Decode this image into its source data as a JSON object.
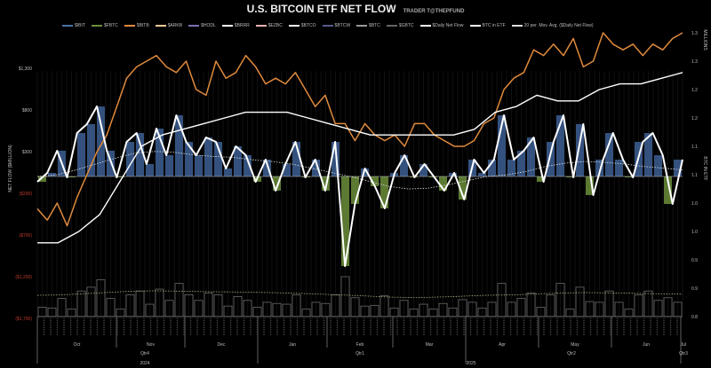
{
  "title": "U.S. BITCOIN ETF NET FLOW",
  "subtitle": "TRADER T@THEPFUND",
  "chart_data": {
    "type": "bar",
    "title": "U.S. BITCOIN ETF NET FLOW",
    "ylabel": "NET FLOW ($MILLION)",
    "y2label": "BTC IN ETF",
    "y2unit": "MILLIONS",
    "ylim": [
      -1700,
      1300
    ],
    "y2lim": [
      0.8,
      1.3
    ],
    "yticks": [
      "$1,300",
      "$800",
      "$300",
      "($200)",
      "($700)",
      "($1,200)",
      "($1,700)"
    ],
    "y2ticks": [
      "1.3",
      "1.3",
      "1.2",
      "1.2",
      "1.1",
      "1.1",
      "1.0",
      "1.0",
      "0.9",
      "0.9",
      "0.8"
    ],
    "legend": [
      {
        "name": "$IBIT",
        "color": "#4a6fa5"
      },
      {
        "name": "$FBTC",
        "color": "#6b8e3a"
      },
      {
        "name": "$BITB",
        "color": "#e08a3c"
      },
      {
        "name": "$ARKB",
        "color": "#f4c99a"
      },
      {
        "name": "$HODL",
        "color": "#7b6fb5"
      },
      {
        "name": "$BRRR",
        "color": "#ffffff"
      },
      {
        "name": "$EZBC",
        "color": "#e7b3b3"
      },
      {
        "name": "$BTCO",
        "color": "#f5f5f5"
      },
      {
        "name": "$BTCW",
        "color": "#5a5a8a"
      },
      {
        "name": "$BTC",
        "color": "#999999"
      },
      {
        "name": "$GBTC",
        "color": "#666666"
      },
      {
        "name": "$Daily Net Flow",
        "color": "#ffffff"
      },
      {
        "name": "BTC in ETF",
        "color": "#ffffff"
      },
      {
        "name": "20 per. Mov. Avg. ($Daily Net Flow)",
        "color": "#dddddd"
      }
    ],
    "months": [
      {
        "label": "Oct"
      },
      {
        "label": "Nov"
      },
      {
        "label": "Dec"
      },
      {
        "label": "Jan"
      },
      {
        "label": "Feb"
      },
      {
        "label": "Mar"
      },
      {
        "label": "Apr"
      },
      {
        "label": "May"
      },
      {
        "label": "Jun"
      },
      {
        "label": "Jul"
      }
    ],
    "quarters": [
      "Qtr4",
      "Qtr1",
      "Qtr2",
      "Qtr3"
    ],
    "years": [
      "2024",
      "2025"
    ],
    "daily_net_flow": [
      -64,
      43,
      309,
      -11,
      521,
      628,
      840,
      309,
      -11,
      415,
      521,
      149,
      574,
      255,
      734,
      415,
      255,
      468,
      415,
      96,
      362,
      255,
      -64,
      202,
      -170,
      149,
      415,
      -11,
      202,
      -170,
      415,
      -1075,
      -330,
      96,
      -117,
      -383,
      43,
      255,
      -11,
      149,
      -11,
      -170,
      43,
      -277,
      202,
      43,
      202,
      734,
      202,
      309,
      468,
      -64,
      415,
      734,
      -11,
      628,
      -223,
      202,
      521,
      202,
      -11,
      415,
      521,
      255,
      -330,
      202
    ],
    "btc_in_etf": [
      0.93,
      0.93,
      0.95,
      0.98,
      1.04,
      1.1,
      1.12,
      1.13,
      1.14,
      1.15,
      1.16,
      1.16,
      1.16,
      1.15,
      1.14,
      1.13,
      1.12,
      1.12,
      1.12,
      1.12,
      1.12,
      1.13,
      1.16,
      1.17,
      1.19,
      1.18,
      1.18,
      1.2,
      1.21,
      1.21,
      1.22,
      1.23
    ],
    "orange_series": [
      0.99,
      0.97,
      1.0,
      0.96,
      1.01,
      1.05,
      1.09,
      1.12,
      1.17,
      1.22,
      1.24,
      1.25,
      1.26,
      1.24,
      1.23,
      1.25,
      1.2,
      1.19,
      1.25,
      1.22,
      1.23,
      1.26,
      1.24,
      1.21,
      1.22,
      1.21,
      1.23,
      1.2,
      1.17,
      1.19,
      1.14,
      1.14,
      1.11,
      1.14,
      1.12,
      1.11,
      1.12,
      1.1,
      1.14,
      1.14,
      1.12,
      1.11,
      1.1,
      1.1,
      1.11,
      1.14,
      1.15,
      1.2,
      1.22,
      1.23,
      1.27,
      1.26,
      1.28,
      1.26,
      1.29,
      1.24,
      1.25,
      1.3,
      1.28,
      1.27,
      1.28,
      1.26,
      1.28,
      1.27,
      1.29,
      1.3
    ],
    "moving_avg": [
      0,
      20,
      80,
      150,
      220,
      280,
      300,
      290,
      260,
      240,
      230,
      200,
      180,
      150,
      100,
      50,
      0,
      -60,
      -120,
      -150,
      -140,
      -100,
      -50,
      0,
      20,
      60,
      120,
      160,
      180,
      170,
      150,
      120,
      100,
      80
    ]
  }
}
